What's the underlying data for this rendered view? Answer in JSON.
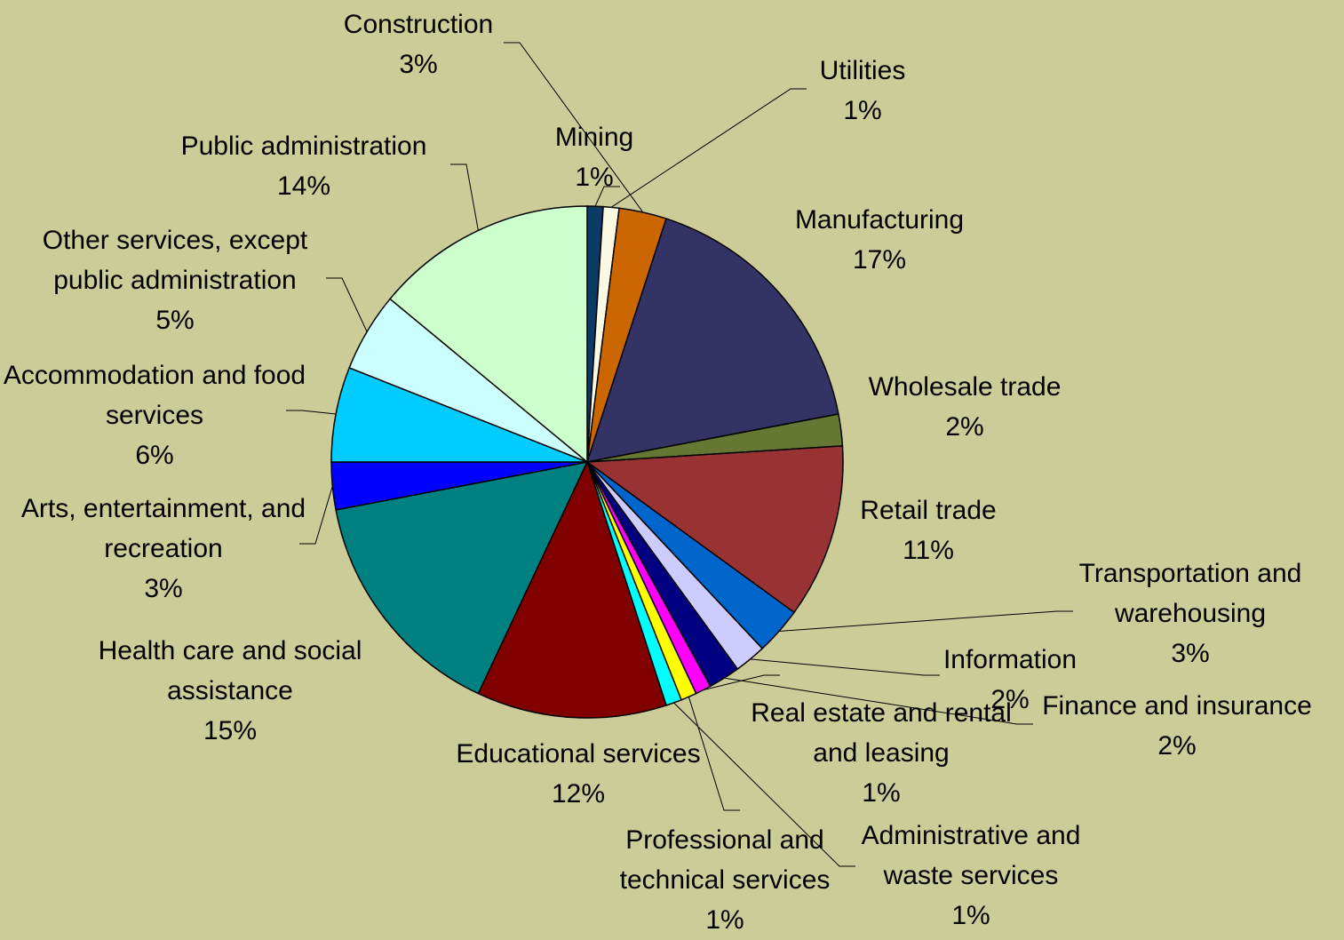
{
  "chart_data": {
    "type": "pie",
    "categories": [
      "Mining",
      "Utilities",
      "Construction",
      "Manufacturing",
      "Wholesale trade",
      "Retail trade",
      "Transportation and warehousing",
      "Information",
      "Finance and insurance",
      "Real estate and rental and leasing",
      "Professional and technical services",
      "Administrative and waste services",
      "Educational services",
      "Health care and social assistance",
      "Arts, entertainment, and recreation",
      "Accommodation and food services",
      "Other services, except public administration",
      "Public administration"
    ],
    "values": [
      1,
      1,
      3,
      17,
      2,
      11,
      3,
      2,
      2,
      1,
      1,
      1,
      12,
      15,
      3,
      6,
      5,
      14
    ],
    "value_labels": [
      "1%",
      "1%",
      "3%",
      "17%",
      "2%",
      "11%",
      "3%",
      "2%",
      "2%",
      "1%",
      "1%",
      "1%",
      "12%",
      "15%",
      "3%",
      "6%",
      "5%",
      "14%"
    ],
    "colors": [
      "#0b3a66",
      "#fbf8e4",
      "#cc6600",
      "#333366",
      "#667733",
      "#993333",
      "#0066cc",
      "#ccccff",
      "#000080",
      "#ff00ff",
      "#ffff00",
      "#00ffff",
      "#800000",
      "#008080",
      "#0000ff",
      "#00ccff",
      "#ccffff",
      "#ccffcc"
    ]
  }
}
